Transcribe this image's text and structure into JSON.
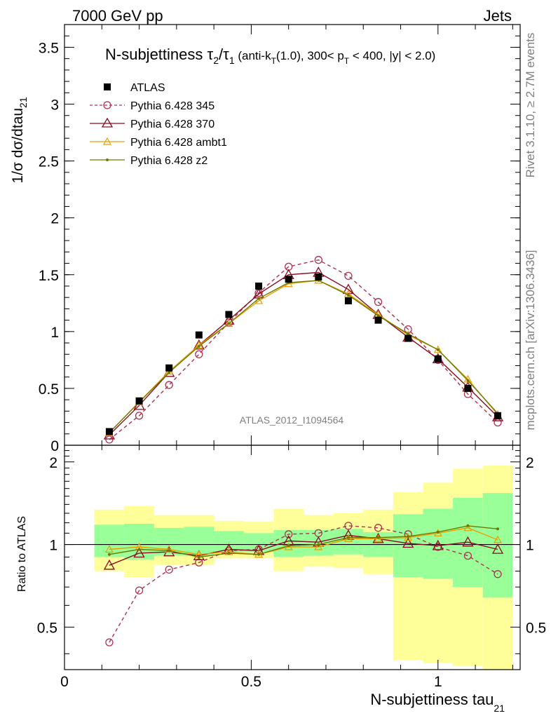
{
  "header": {
    "left": "7000 GeV pp",
    "right": "Jets"
  },
  "side_labels": {
    "rivet": "Rivet 3.1.10, ≥ 2.7M events",
    "mcplots": "mcplots.cern.ch [arXiv:1306.3436]"
  },
  "watermark": "ATLAS_2012_I1094564",
  "chart_data": [
    {
      "type": "line",
      "panel": "main",
      "title_main": "N-subjettiness τ",
      "title_sub2": "2",
      "title_slash": "/τ",
      "title_sub1": "1",
      "title_cut_a": " (anti-k",
      "title_cut_T1": "T",
      "title_cut_b": "(1.0), 300< p",
      "title_cut_T2": "T",
      "title_cut_c": " < 400, |y| < 2.0)",
      "ylabel": "1/σ dσ/dtau",
      "ylabel_sub": "21",
      "xlim": [
        0,
        1.22
      ],
      "ylim": [
        0,
        3.7
      ],
      "yticks": [
        {
          "value": 0,
          "label": "0"
        },
        {
          "value": 0.5,
          "label": "0.5"
        },
        {
          "value": 1,
          "label": "1"
        },
        {
          "value": 1.5,
          "label": "1.5"
        },
        {
          "value": 2,
          "label": "2"
        },
        {
          "value": 2.5,
          "label": "2.5"
        },
        {
          "value": 3,
          "label": "3"
        },
        {
          "value": 3.5,
          "label": "3.5"
        }
      ],
      "x": [
        0.12,
        0.2,
        0.28,
        0.36,
        0.44,
        0.52,
        0.6,
        0.68,
        0.76,
        0.84,
        0.92,
        1.0,
        1.08,
        1.16
      ],
      "data_series": {
        "name": "ATLAS",
        "values": [
          0.12,
          0.39,
          0.68,
          0.97,
          1.15,
          1.4,
          1.46,
          1.48,
          1.27,
          1.1,
          0.94,
          0.76,
          0.5,
          0.26
        ]
      },
      "series": [
        {
          "name": "Pythia 6.428 345",
          "color": "#b03050",
          "style": "dashed",
          "marker": "circle",
          "values": [
            0.05,
            0.26,
            0.53,
            0.8,
            1.08,
            1.34,
            1.57,
            1.63,
            1.49,
            1.26,
            1.02,
            0.75,
            0.45,
            0.2
          ]
        },
        {
          "name": "Pythia 6.428 370",
          "color": "#8b0a20",
          "style": "solid",
          "marker": "triangle",
          "values": [
            0.09,
            0.35,
            0.64,
            0.88,
            1.1,
            1.33,
            1.5,
            1.52,
            1.37,
            1.15,
            0.95,
            0.76,
            0.51,
            0.25
          ]
        },
        {
          "name": "Pythia 6.428 ambt1",
          "color": "#e8a000",
          "style": "solid",
          "marker": "triangle-small",
          "values": [
            0.11,
            0.38,
            0.65,
            0.88,
            1.07,
            1.27,
            1.42,
            1.45,
            1.33,
            1.15,
            0.97,
            0.84,
            0.58,
            0.27
          ]
        },
        {
          "name": "Pythia 6.428 z2",
          "color": "#6e7a00",
          "style": "solid",
          "marker": "dot",
          "values": [
            0.11,
            0.38,
            0.64,
            0.87,
            1.07,
            1.29,
            1.43,
            1.45,
            1.32,
            1.14,
            0.98,
            0.84,
            0.57,
            0.28
          ]
        }
      ]
    },
    {
      "type": "line",
      "panel": "ratio",
      "ylabel": "Ratio to ATLAS",
      "xlabel": "N-subjettiness tau",
      "xlabel_sub": "21",
      "xlim": [
        0,
        1.22
      ],
      "ylim": [
        0.35,
        2.3
      ],
      "xticks": [
        {
          "value": 0,
          "label": "0"
        },
        {
          "value": 0.5,
          "label": "0.5"
        },
        {
          "value": 1,
          "label": "1"
        }
      ],
      "yticks": [
        {
          "value": 0.5,
          "label": "0.5"
        },
        {
          "value": 1,
          "label": "1"
        },
        {
          "value": 2,
          "label": "2"
        }
      ],
      "x": [
        0.12,
        0.2,
        0.28,
        0.36,
        0.44,
        0.52,
        0.6,
        0.68,
        0.76,
        0.84,
        0.92,
        1.0,
        1.08,
        1.16
      ],
      "bands": {
        "bin_edges": [
          0.08,
          0.16,
          0.24,
          0.32,
          0.4,
          0.48,
          0.56,
          0.64,
          0.72,
          0.8,
          0.88,
          0.96,
          1.04,
          1.12,
          1.2
        ],
        "stat_lo": [
          0.9,
          0.88,
          0.91,
          0.91,
          0.94,
          0.94,
          0.9,
          0.91,
          0.92,
          0.9,
          0.76,
          0.75,
          0.7,
          0.64
        ],
        "stat_hi": [
          1.18,
          1.19,
          1.15,
          1.16,
          1.12,
          1.1,
          1.13,
          1.13,
          1.14,
          1.11,
          1.29,
          1.35,
          1.48,
          1.54
        ],
        "syst_lo": [
          0.8,
          0.76,
          0.84,
          0.84,
          0.89,
          0.89,
          0.8,
          0.83,
          0.82,
          0.78,
          0.38,
          0.37,
          0.36,
          0.35
        ],
        "syst_hi": [
          1.34,
          1.38,
          1.28,
          1.28,
          1.22,
          1.21,
          1.35,
          1.28,
          1.3,
          1.34,
          1.55,
          1.68,
          1.89,
          1.94
        ]
      },
      "series": [
        {
          "name": "Pythia 6.428 345",
          "values": [
            0.44,
            0.68,
            0.81,
            0.86,
            0.95,
            0.96,
            1.09,
            1.1,
            1.17,
            1.15,
            1.09,
            0.98,
            0.91,
            0.78
          ]
        },
        {
          "name": "Pythia 6.428 370",
          "values": [
            0.84,
            0.93,
            0.94,
            0.91,
            0.96,
            0.95,
            1.03,
            1.02,
            1.08,
            1.05,
            1.01,
            0.99,
            1.02,
            0.96
          ]
        },
        {
          "name": "Pythia 6.428 ambt1",
          "values": [
            0.96,
            0.98,
            0.96,
            0.92,
            0.94,
            0.92,
            0.98,
            0.98,
            1.05,
            1.05,
            1.06,
            1.1,
            1.15,
            1.04
          ]
        },
        {
          "name": "Pythia 6.428 z2",
          "values": [
            0.92,
            0.96,
            0.95,
            0.9,
            0.93,
            0.92,
            0.99,
            1.0,
            1.06,
            1.06,
            1.07,
            1.11,
            1.17,
            1.14
          ]
        }
      ]
    }
  ]
}
